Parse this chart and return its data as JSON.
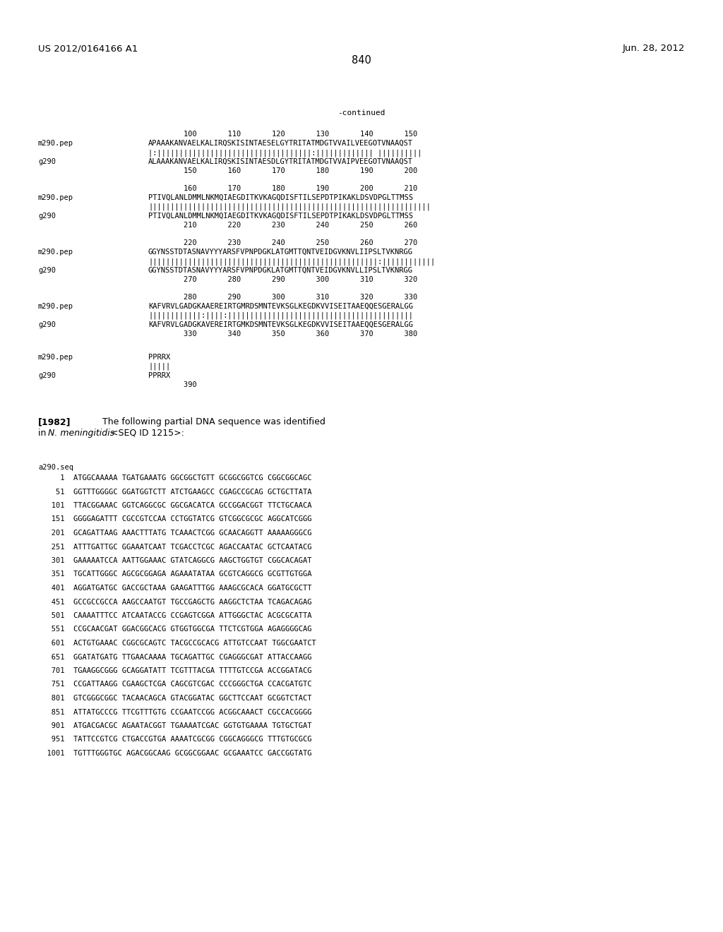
{
  "page_left": "US 2012/0164166 A1",
  "page_right": "Jun. 28, 2012",
  "page_number": "840",
  "continued_label": "-continued",
  "background_color": "#ffffff",
  "text_color": "#000000",
  "font_size_header": 9.5,
  "font_size_body": 9.0,
  "font_size_mono": 7.5,
  "alignment_blocks": [
    {
      "numbers_top": "        100       110       120       130       140       150",
      "label1": "m290.pep",
      "seq1": "APAAAKANVAELKALIRQSKISINTAESELGYTRITATMDGTVVAILVEEGOTVNAAQST",
      "match": "|:|||||||||||||||||||||||||||||||||||:||||||||||||| ||||||||||",
      "label2": "g290",
      "seq2": "ALAAAKANVAELKALIRQSKISINTAESDLGYTRITATMDGTVVAIPVEEGOTVNAAQST",
      "numbers_bot": "        150       160       170       180       190       200"
    },
    {
      "numbers_top": "        160       170       180       190       200       210",
      "label1": "m290.pep",
      "seq1": "PTIVQLANLDMMLNKMQIAEGDITKVKAGQDISFTILSEPDTPIKAKLDSVDPGLTTMSS",
      "match": "||||||||||||||||||||||||||||||||||||||||||||||||||||||||||||||||",
      "label2": "g290",
      "seq2": "PTIVQLANLDMMLNKMQIAEGDITKVKAGQDISFTILSEPDTPIKAKLDSVDPGLTTMSS",
      "numbers_bot": "        210       220       230       240       250       260"
    },
    {
      "numbers_top": "        220       230       240       250       260       270",
      "label1": "m290.pep",
      "seq1": "GGYNSSTDTASNAVYYYARSFVPNPDGKLATGMTTQNTVEIDGVKNVLIIPSLTVKNRGG",
      "match": "||||||||||||||||||||||||||||||||||||||||||||||||||||:||||||||||||",
      "label2": "g290",
      "seq2": "GGYNSSTDTASNAVYYYARSFVPNPDGKLATGMTTQNTVEIDGVKNVLLIPSLTVKNRGG",
      "numbers_bot": "        270       280       290       300       310       320"
    },
    {
      "numbers_top": "        280       290       300       310       320       330",
      "label1": "m290.pep",
      "seq1": "KAFVRVLGADGKAAEREIRTGMRDSMNTEVKSGLKEGDKVVISEITAAEQQESGERALGG",
      "match": "||||||||||||:||||:||||||||||||||||||||||||||||||||||||||||||",
      "label2": "g290",
      "seq2": "KAFVRVLGADGKAVEREIRTGMKDSMNTEVKSGLKEGDKVVISEITAAEQQESGERALGG",
      "numbers_bot": "        330       340       350       360       370       380"
    }
  ],
  "last_block": {
    "label1": "m290.pep",
    "seq1": "PPRRX",
    "match": "|||||",
    "label2": "g290",
    "seq2": "PPRRX",
    "number_bot": "        390"
  },
  "paragraph_number": "[1982]",
  "paragraph_line1": "The following partial DNA sequence was identified",
  "paragraph_line2a": "in ",
  "paragraph_line2b": "N. meningitidis",
  "paragraph_line2c": " <SEQ ID 1215>:",
  "dna_label": "a290.seq",
  "dna_sequences": [
    "     1  ATGGCAAAAA TGATGAAATG GGCGGCTGTT GCGGCGGTCG CGGCGGCAGC",
    "    51  GGTTTGGGGC GGATGGTCTT ATCTGAAGCC CGAGCCGCAG GCTGCTTATA",
    "   101  TTACGGAAAC GGTCAGGCGC GGCGACATCA GCCGGACGGT TTCTGCAACA",
    "   151  GGGGAGATTT CGCCGTCCAA CCTGGTATCG GTCGGCGCGC AGGCATCGGG",
    "   201  GCAGATTAAG AAACTTTATG TCAAACTCGG GCAACAGGTT AAAAAGGGCG",
    "   251  ATTTGATTGC GGAAATCAAT TCGACCTCGC AGACCAATAC GCTCAATACG",
    "   301  GAAAAATCCA AATTGGAAAC GTATCAGGCG AAGCTGGTGT CGGCACAGAT",
    "   351  TGCATTGGGC AGCGCGGAGA AGAAATATAA GCGTCAGGCG GCGTTGTGGA",
    "   401  AGGATGATGC GACCGCTAAA GAAGATTTGG AAAGCGCACA GGATGCGCTT",
    "   451  GCCGCCGCCA AAGCCAATGT TGCCGAGCTG AAGGCTCTAA TCAGACAGAG",
    "   501  CAAAATTTCC ATCAATACCG CCGAGTCGGA ATTGGGCTAC ACGCGCATTA",
    "   551  CCGCAACGAT GGACGGCACG GTGGTGGCGA TTCTCGTGGA AGAGGGGCAG",
    "   601  ACTGTGAAAC CGGCGCAGTC TACGCCGCACG ATTGTCCAAT TGGCGAATCT",
    "   651  GGATATGATG TTGAACAAAA TGCAGATTGC CGAGGGCGAT ATTACCAAGG",
    "   701  TGAAGGCGGG GCAGGATATT TCGTTTACGA TTTTGTCCGA ACCGGATACG",
    "   751  CCGATTAAGG CGAAGCTCGA CAGCGTCGAC CCCGGGCTGA CCACGATGTC",
    "   801  GTCGGGCGGC TACAACAGCA GTACGGATAC GGCTTCCAAT GCGGTCTACT",
    "   851  ATTATGCCCG TTCGTTTGTG CCGAATCCGG ACGGCAAACT CGCCACGGGG",
    "   901  ATGACGACGC AGAATACGGT TGAAAATCGAC GGTGTGAAAA TGTGCTGAT",
    "   951  TATTCCGTCG CTGACCGTGA AAAATCGCGG CGGCAGGGCG TTTGTGCGCG",
    "  1001  TGTTTGGGTGC AGACGGCAAG GCGGCGGAAC GCGAAATCC GACCGGTATG"
  ]
}
